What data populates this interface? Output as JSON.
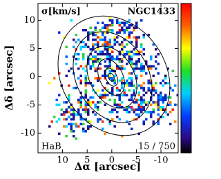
{
  "chart_data": {
    "type": "map",
    "title": "NGC1433",
    "quantity": "σ[km/s]",
    "line": "HaB",
    "range_label": "15 / 750",
    "xlabel": "Δα [arcsec]",
    "ylabel": "Δδ [arcsec]",
    "xlim": [
      15,
      -13.5
    ],
    "xticks": [
      10,
      5,
      0,
      -5,
      -10
    ],
    "ylim": [
      -13.5,
      13
    ],
    "yticks": [
      10,
      5,
      0,
      -5,
      -10
    ]
  }
}
